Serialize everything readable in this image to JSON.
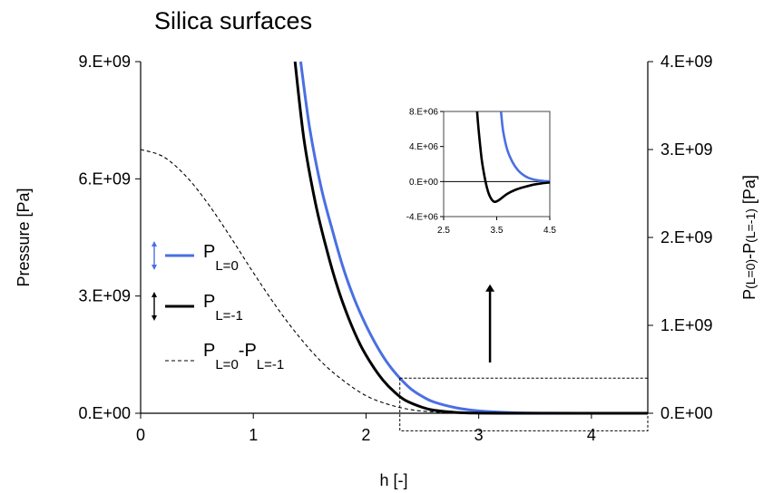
{
  "chart_data": [
    {
      "type": "line",
      "title": "Silica surfaces",
      "xlabel": "h [-]",
      "ylabel": "Pressure [Pa]",
      "ylabel_right": "P(L=0)-P(L=-1) [Pa]",
      "y2label_parts": {
        "base1": "P",
        "sub1": "(L=0)",
        "mid": "-P",
        "sub2": "(L=-1)",
        "unit": " [Pa]"
      },
      "xlim": [
        0,
        4.5
      ],
      "ylim": [
        0,
        9000000000
      ],
      "y2lim": [
        0,
        4000000000
      ],
      "x_ticks": [
        0,
        1,
        2,
        3,
        4
      ],
      "x_tick_labels": [
        "0",
        "1",
        "2",
        "3",
        "4"
      ],
      "y_ticks": [
        0,
        3000000000,
        6000000000,
        9000000000
      ],
      "y_tick_labels": [
        "0.E+00",
        "3.E+09",
        "6.E+09",
        "9.E+09"
      ],
      "y2_ticks": [
        0,
        1000000000,
        2000000000,
        3000000000,
        4000000000
      ],
      "y2_tick_labels": [
        "0.E+00",
        "1.E+09",
        "2.E+09",
        "3.E+09",
        "4.E+09"
      ],
      "grid": false,
      "legend_position": "left",
      "series": [
        {
          "name": "P_L=0",
          "legend_base": "P",
          "legend_sub": "L=0",
          "color": "#4a6fe3",
          "axis": "left",
          "dash": "solid",
          "x": [
            1.42,
            1.5,
            1.6,
            1.7,
            1.8,
            1.9,
            2.0,
            2.1,
            2.2,
            2.3,
            2.4,
            2.5,
            2.6,
            2.8,
            3.0,
            3.3,
            3.6,
            4.0,
            4.5
          ],
          "y": [
            9000000000,
            7300000000,
            5800000000,
            4700000000,
            3700000000,
            2900000000,
            2250000000,
            1700000000,
            1250000000,
            900000000,
            620000000,
            430000000,
            290000000,
            140000000,
            60000000,
            15000000,
            3000000,
            500000,
            0
          ]
        },
        {
          "name": "P_L=-1",
          "legend_base": "P",
          "legend_sub": "L=-1",
          "color": "#000000",
          "axis": "left",
          "dash": "solid",
          "x": [
            1.37,
            1.45,
            1.55,
            1.65,
            1.75,
            1.85,
            1.95,
            2.05,
            2.15,
            2.25,
            2.35,
            2.5,
            2.6,
            2.8,
            3.0,
            3.3,
            3.6,
            4.0,
            4.5
          ],
          "y": [
            9000000000,
            7000000000,
            5400000000,
            4200000000,
            3200000000,
            2400000000,
            1750000000,
            1250000000,
            850000000,
            550000000,
            330000000,
            150000000,
            80000000,
            20000000,
            3000000,
            0,
            0,
            0,
            0
          ]
        },
        {
          "name": "P_L=0-P_L=-1",
          "legend_parts": [
            "P",
            "L=0",
            "-P",
            "L=-1"
          ],
          "color": "#000000",
          "axis": "right",
          "dash": "dashed",
          "x": [
            0.0,
            0.2,
            0.4,
            0.6,
            0.8,
            1.0,
            1.2,
            1.4,
            1.6,
            1.8,
            2.0,
            2.2,
            2.4,
            2.6,
            2.8,
            3.0,
            3.3,
            3.6,
            4.0,
            4.5
          ],
          "y": [
            3000000000,
            2920000000,
            2700000000,
            2380000000,
            2000000000,
            1600000000,
            1220000000,
            880000000,
            590000000,
            370000000,
            200000000,
            100000000,
            40000000,
            15000000,
            5000000,
            2000000,
            0,
            0,
            0,
            0
          ]
        }
      ],
      "zoom_box": {
        "x": [
          2.3,
          4.5
        ],
        "y2": [
          -200000000,
          400000000
        ]
      },
      "annotation_arrow": {
        "x": 3.1,
        "y_from": 1300000000,
        "y_to": 3300000000
      }
    },
    {
      "type": "line",
      "title": "",
      "xlim": [
        2.5,
        4.5
      ],
      "ylim": [
        -4000000,
        8000000
      ],
      "x_ticks": [
        2.5,
        3.5,
        4.5
      ],
      "x_tick_labels": [
        "2.5",
        "3.5",
        "4.5"
      ],
      "y_ticks": [
        -4000000,
        0,
        4000000,
        8000000
      ],
      "y_tick_labels": [
        "-4.E+06",
        "0.E+00",
        "4.E+06",
        "8.E+06"
      ],
      "series": [
        {
          "name": "P_L=0",
          "color": "#4a6fe3",
          "x": [
            3.58,
            3.62,
            3.7,
            3.8,
            3.9,
            4.0,
            4.1,
            4.2,
            4.3,
            4.4,
            4.5
          ],
          "y": [
            8000000,
            5800000,
            3600000,
            2200000,
            1300000,
            750000,
            420000,
            230000,
            120000,
            60000,
            20000
          ]
        },
        {
          "name": "P_L=-1",
          "color": "#000000",
          "x": [
            3.13,
            3.17,
            3.22,
            3.27,
            3.32,
            3.38,
            3.45,
            3.52,
            3.6,
            3.7,
            3.85,
            4.0,
            4.2,
            4.35,
            4.5
          ],
          "y": [
            8000000,
            5200000,
            2400000,
            600000,
            -800000,
            -1800000,
            -2300000,
            -2200000,
            -1850000,
            -1400000,
            -950000,
            -650000,
            -350000,
            -200000,
            -100000
          ]
        }
      ]
    }
  ]
}
